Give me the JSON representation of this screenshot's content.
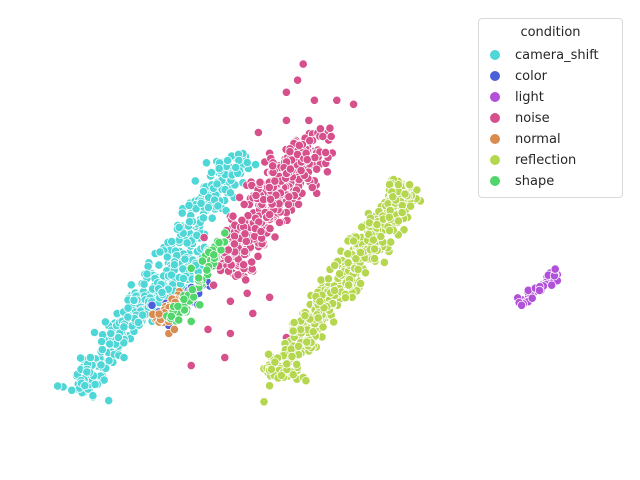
{
  "chart_data": {
    "type": "scatter",
    "title": "",
    "xlabel": "",
    "ylabel": "",
    "axes_visible": false,
    "grid": false,
    "legend": {
      "title": "condition",
      "placement": "top-right",
      "entries": [
        {
          "name": "camera_shift",
          "color": "#4fd6d6"
        },
        {
          "name": "color",
          "color": "#4b5fd8"
        },
        {
          "name": "light",
          "color": "#b150d8"
        },
        {
          "name": "noise",
          "color": "#d6508c"
        },
        {
          "name": "normal",
          "color": "#d98c4f"
        },
        {
          "name": "reflection",
          "color": "#b5d64f"
        },
        {
          "name": "shape",
          "color": "#50d66a"
        }
      ]
    },
    "xlim": [
      0,
      100
    ],
    "ylim": [
      0,
      100
    ],
    "series": [
      {
        "name": "camera_shift",
        "color": "#4fd6d6",
        "clusters": [
          {
            "from": [
              7,
              12
            ],
            "to": [
              36,
              72
            ],
            "width": 3.5,
            "count": 380
          },
          {
            "from": [
              17,
              30
            ],
            "to": [
              30,
              48
            ],
            "width": 3.0,
            "count": 120
          }
        ],
        "points": [
          [
            8,
            14
          ],
          [
            9,
            21
          ],
          [
            11,
            25
          ],
          [
            15,
            21
          ],
          [
            14,
            26
          ],
          [
            26,
            36
          ],
          [
            34,
            62
          ],
          [
            32,
            68
          ]
        ]
      },
      {
        "name": "color",
        "color": "#4b5fd8",
        "clusters": [
          {
            "from": [
              21,
              30
            ],
            "to": [
              30,
              40
            ],
            "width": 2.0,
            "count": 30
          }
        ],
        "points": [
          [
            20,
            34
          ],
          [
            23,
            29
          ],
          [
            29,
            39
          ]
        ]
      },
      {
        "name": "light",
        "color": "#b150d8",
        "clusters": [
          {
            "from": [
              86,
              34
            ],
            "to": [
              92,
              42
            ],
            "width": 1.2,
            "count": 55
          }
        ],
        "points": [
          [
            92,
            43
          ],
          [
            86,
            34
          ]
        ]
      },
      {
        "name": "noise",
        "color": "#d6508c",
        "clusters": [
          {
            "from": [
              33,
              42
            ],
            "to": [
              48,
              74
            ],
            "width": 5.0,
            "count": 420
          },
          {
            "from": [
              39,
              60
            ],
            "to": [
              52,
              78
            ],
            "width": 3.0,
            "count": 80
          }
        ],
        "points": [
          [
            47,
            94
          ],
          [
            44,
            87
          ],
          [
            49,
            85
          ],
          [
            53,
            85
          ],
          [
            56,
            84
          ],
          [
            48,
            80
          ],
          [
            44,
            80
          ],
          [
            52,
            76
          ],
          [
            39,
            77
          ],
          [
            34,
            35
          ],
          [
            37,
            37
          ],
          [
            31,
            39
          ],
          [
            30,
            28
          ],
          [
            34,
            27
          ],
          [
            33,
            21
          ],
          [
            27,
            19
          ],
          [
            44,
            26
          ],
          [
            41,
            36
          ],
          [
            38,
            32
          ],
          [
            46,
            90
          ],
          [
            51,
            72
          ]
        ]
      },
      {
        "name": "normal",
        "color": "#d98c4f",
        "clusters": [
          {
            "from": [
              21,
              30
            ],
            "to": [
              26,
              37
            ],
            "width": 1.8,
            "count": 45
          }
        ],
        "points": [
          [
            23,
            27
          ],
          [
            24,
            28
          ]
        ]
      },
      {
        "name": "reflection",
        "color": "#b5d64f",
        "clusters": [
          {
            "from": [
              42,
              16
            ],
            "to": [
              66,
              64
            ],
            "width": 3.5,
            "count": 480
          },
          {
            "from": [
              58,
              46
            ],
            "to": [
              66,
              65
            ],
            "width": 2.5,
            "count": 60
          }
        ],
        "points": [
          [
            40,
            10
          ],
          [
            41,
            14
          ],
          [
            55,
            50
          ],
          [
            56,
            50
          ],
          [
            63,
            61
          ],
          [
            64,
            64
          ],
          [
            66,
            64
          ],
          [
            64,
            55
          ]
        ]
      },
      {
        "name": "shape",
        "color": "#50d66a",
        "clusters": [
          {
            "from": [
              24,
              30
            ],
            "to": [
              33,
              50
            ],
            "width": 2.2,
            "count": 55
          }
        ],
        "points": [
          [
            33,
            52
          ],
          [
            27,
            30
          ],
          [
            29,
            45
          ]
        ]
      }
    ]
  }
}
